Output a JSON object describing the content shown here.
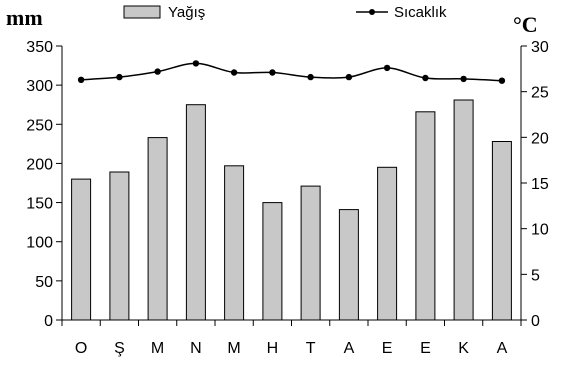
{
  "chart_data": {
    "type": "bar",
    "categories": [
      "O",
      "Ş",
      "M",
      "N",
      "M",
      "H",
      "T",
      "A",
      "E",
      "E",
      "K",
      "A"
    ],
    "series": [
      {
        "name": "Yağış",
        "type": "bar",
        "axis": "left",
        "color": "#c8c8c8",
        "values": [
          180,
          189,
          233,
          275,
          197,
          150,
          171,
          141,
          195,
          266,
          281,
          228
        ]
      },
      {
        "name": "Sıcaklık",
        "type": "line",
        "axis": "right",
        "color": "#000000",
        "values": [
          26.3,
          26.6,
          27.2,
          28.1,
          27.1,
          27.1,
          26.6,
          26.6,
          27.6,
          26.5,
          26.4,
          26.2
        ]
      }
    ],
    "y_left": {
      "label": "mm",
      "ylim": [
        0,
        350
      ],
      "ticks": [
        "0",
        "50",
        "100",
        "150",
        "200",
        "250",
        "300",
        "350"
      ]
    },
    "y_right": {
      "label": "°C",
      "ylim": [
        0,
        30
      ],
      "ticks": [
        "0",
        "5",
        "10",
        "15",
        "20",
        "25",
        "30"
      ]
    },
    "legend_position": "top",
    "grid": false
  }
}
